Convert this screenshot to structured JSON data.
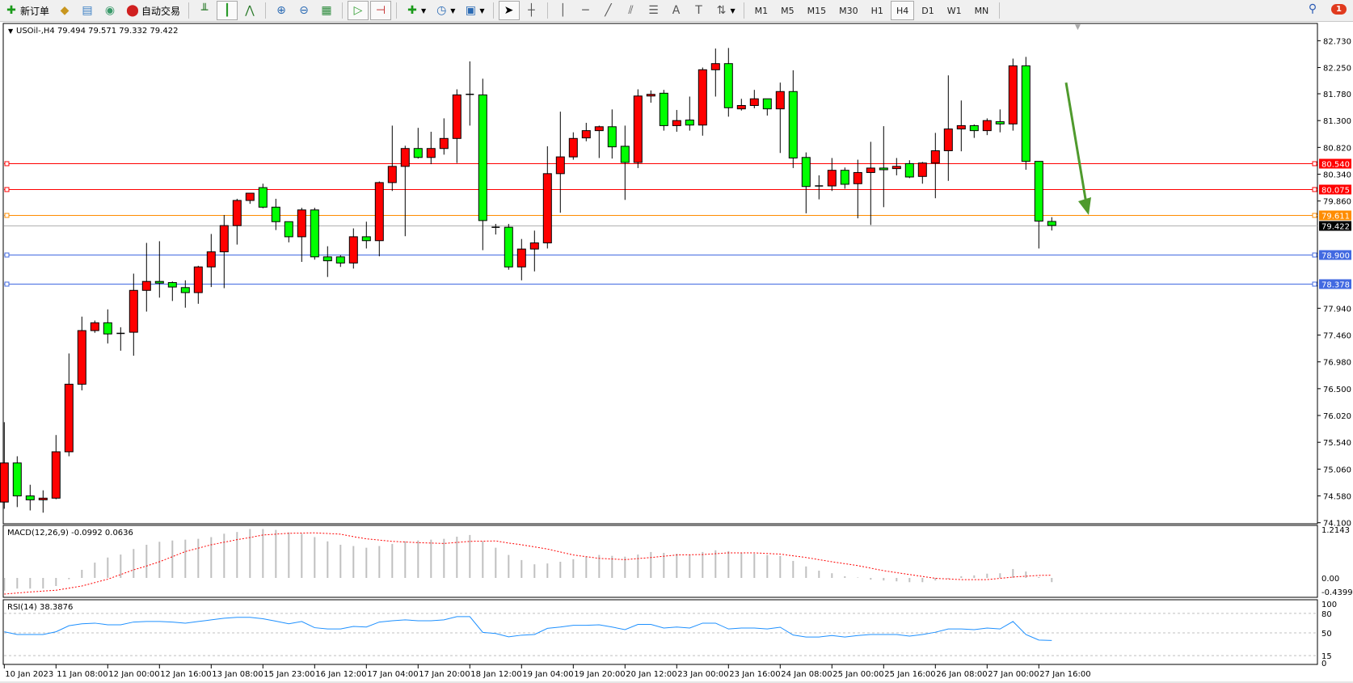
{
  "toolbar": {
    "new_order_label": "新订单",
    "auto_trade_label": "自动交易",
    "timeframes": [
      "M1",
      "M5",
      "M15",
      "M30",
      "H1",
      "H4",
      "D1",
      "W1",
      "MN"
    ],
    "active_timeframe": "H4",
    "notification_count": "1"
  },
  "chart": {
    "header": "USOil-,H4  79.494 79.571 79.332 79.422",
    "symbol": "USOil-",
    "period": "H4",
    "ohlc_current": {
      "open": 79.494,
      "high": 79.571,
      "low": 79.332,
      "close": 79.422
    },
    "price_ticks": [
      "82.730",
      "82.250",
      "81.780",
      "81.300",
      "80.820",
      "80.340",
      "79.860",
      "77.940",
      "77.460",
      "76.980",
      "76.500",
      "76.020",
      "75.540",
      "75.060",
      "74.580",
      "74.100"
    ],
    "levels": [
      {
        "price": "80.540",
        "color": "#ff0000"
      },
      {
        "price": "80.075",
        "color": "#ff0000"
      },
      {
        "price": "79.611",
        "color": "#ff8c00"
      },
      {
        "price": "78.900",
        "color": "#4169e1"
      },
      {
        "price": "78.378",
        "color": "#4169e1"
      }
    ],
    "current_price": {
      "price": "79.422",
      "color": "#000000"
    },
    "time_labels": [
      "10 Jan 2023",
      "11 Jan 08:00",
      "12 Jan 00:00",
      "12 Jan 16:00",
      "13 Jan 08:00",
      "15 Jan 23:00",
      "16 Jan 12:00",
      "17 Jan 04:00",
      "17 Jan 20:00",
      "18 Jan 12:00",
      "19 Jan 04:00",
      "19 Jan 20:00",
      "20 Jan 12:00",
      "23 Jan 00:00",
      "23 Jan 16:00",
      "24 Jan 08:00",
      "25 Jan 00:00",
      "25 Jan 16:00",
      "26 Jan 08:00",
      "27 Jan 00:00",
      "27 Jan 16:00"
    ],
    "bull_color": "#ff0000",
    "bear_color": "#00ff00",
    "annotation_arrow_color": "#4f9a2d"
  },
  "macd": {
    "label": "MACD(12,26,9) -0.0992 0.0636",
    "ticks": [
      "1.2143",
      "0.00",
      "-0.4399"
    ]
  },
  "rsi": {
    "label": "RSI(14) 38.3876",
    "ticks": [
      "100",
      "80",
      "50",
      "15",
      "0"
    ]
  },
  "chart_data": {
    "type": "candlestick",
    "ylim": [
      74.1,
      82.73
    ],
    "ohlc": [
      [
        74.47,
        75.9,
        74.35,
        75.17
      ],
      [
        75.17,
        75.29,
        74.38,
        74.58
      ],
      [
        74.58,
        74.78,
        74.32,
        74.51
      ],
      [
        74.51,
        74.68,
        74.28,
        74.54
      ],
      [
        74.54,
        75.67,
        74.52,
        75.37
      ],
      [
        75.37,
        77.13,
        75.29,
        76.58
      ],
      [
        76.58,
        77.79,
        76.47,
        77.54
      ],
      [
        77.54,
        77.72,
        77.5,
        77.68
      ],
      [
        77.68,
        77.92,
        77.31,
        77.48
      ],
      [
        77.48,
        77.6,
        77.18,
        77.49
      ],
      [
        77.51,
        78.56,
        77.09,
        78.26
      ],
      [
        78.26,
        79.11,
        77.88,
        78.42
      ],
      [
        78.42,
        79.14,
        78.13,
        78.39
      ],
      [
        78.4,
        78.42,
        78.07,
        78.32
      ],
      [
        78.31,
        78.44,
        77.95,
        78.22
      ],
      [
        78.22,
        78.7,
        78.02,
        78.68
      ],
      [
        78.68,
        79.27,
        78.32,
        78.95
      ],
      [
        78.95,
        79.61,
        78.3,
        79.42
      ],
      [
        79.42,
        79.9,
        79.08,
        79.87
      ],
      [
        79.87,
        80.0,
        79.81,
        80.0
      ],
      [
        80.1,
        80.17,
        79.73,
        79.75
      ],
      [
        79.75,
        79.9,
        79.34,
        79.49
      ],
      [
        79.49,
        79.49,
        79.12,
        79.22
      ],
      [
        79.22,
        79.74,
        78.77,
        79.7
      ],
      [
        79.7,
        79.74,
        78.81,
        78.86
      ],
      [
        78.86,
        79.05,
        78.5,
        78.79
      ],
      [
        78.86,
        78.89,
        78.68,
        78.75
      ],
      [
        78.75,
        79.37,
        78.65,
        79.22
      ],
      [
        79.22,
        79.49,
        79.01,
        79.15
      ],
      [
        79.15,
        80.21,
        78.87,
        80.19
      ],
      [
        80.19,
        81.21,
        80.04,
        80.48
      ],
      [
        80.48,
        80.85,
        79.23,
        80.8
      ],
      [
        80.8,
        81.17,
        80.62,
        80.64
      ],
      [
        80.64,
        81.1,
        80.52,
        80.8
      ],
      [
        80.8,
        81.34,
        80.69,
        80.98
      ],
      [
        80.98,
        81.86,
        80.54,
        81.76
      ],
      [
        81.76,
        82.36,
        81.21,
        81.77
      ],
      [
        81.76,
        82.05,
        78.98,
        79.51
      ],
      [
        79.39,
        79.45,
        79.26,
        79.39
      ],
      [
        79.39,
        79.45,
        78.63,
        78.68
      ],
      [
        78.68,
        79.18,
        78.44,
        79.0
      ],
      [
        79.0,
        79.33,
        78.6,
        79.11
      ],
      [
        79.11,
        80.84,
        79.01,
        80.35
      ],
      [
        80.35,
        81.46,
        79.65,
        80.65
      ],
      [
        80.65,
        81.09,
        80.6,
        80.98
      ],
      [
        80.99,
        81.26,
        80.93,
        81.12
      ],
      [
        81.12,
        81.21,
        80.63,
        81.19
      ],
      [
        81.19,
        81.5,
        80.62,
        80.83
      ],
      [
        80.84,
        81.21,
        79.88,
        80.55
      ],
      [
        80.55,
        81.86,
        80.45,
        81.74
      ],
      [
        81.74,
        81.84,
        81.62,
        81.77
      ],
      [
        81.79,
        81.85,
        81.12,
        81.21
      ],
      [
        81.21,
        81.49,
        81.1,
        81.3
      ],
      [
        81.31,
        81.73,
        81.12,
        81.22
      ],
      [
        81.22,
        82.25,
        81.03,
        82.21
      ],
      [
        82.21,
        82.59,
        81.73,
        82.32
      ],
      [
        82.32,
        82.6,
        81.37,
        81.53
      ],
      [
        81.51,
        81.69,
        81.48,
        81.57
      ],
      [
        81.57,
        81.85,
        81.52,
        81.69
      ],
      [
        81.69,
        81.69,
        81.39,
        81.51
      ],
      [
        81.51,
        81.98,
        80.72,
        81.82
      ],
      [
        81.82,
        82.2,
        80.45,
        80.63
      ],
      [
        80.64,
        80.73,
        79.64,
        80.12
      ],
      [
        80.13,
        80.32,
        79.89,
        80.13
      ],
      [
        80.13,
        80.63,
        80.04,
        80.41
      ],
      [
        80.41,
        80.46,
        80.08,
        80.16
      ],
      [
        80.17,
        80.6,
        79.55,
        80.37
      ],
      [
        80.37,
        80.92,
        79.43,
        80.45
      ],
      [
        80.45,
        81.2,
        79.75,
        80.42
      ],
      [
        80.44,
        80.63,
        80.32,
        80.48
      ],
      [
        80.53,
        80.59,
        80.27,
        80.29
      ],
      [
        80.3,
        80.56,
        80.17,
        80.54
      ],
      [
        80.54,
        81.08,
        79.91,
        80.76
      ],
      [
        80.76,
        82.11,
        80.22,
        81.15
      ],
      [
        81.15,
        81.66,
        80.75,
        81.21
      ],
      [
        81.21,
        81.23,
        80.99,
        81.12
      ],
      [
        81.12,
        81.34,
        81.04,
        81.3
      ],
      [
        81.28,
        81.5,
        81.09,
        81.24
      ],
      [
        81.24,
        82.41,
        81.12,
        82.28
      ],
      [
        82.28,
        82.44,
        80.42,
        80.57
      ],
      [
        80.57,
        80.57,
        79.01,
        79.5
      ],
      [
        79.494,
        79.571,
        79.332,
        79.422
      ]
    ],
    "macd_histogram": [
      -0.3,
      -0.25,
      -0.25,
      -0.25,
      -0.19,
      -0.03,
      0.19,
      0.36,
      0.48,
      0.55,
      0.68,
      0.78,
      0.85,
      0.88,
      0.9,
      0.92,
      0.96,
      1.04,
      1.08,
      1.15,
      1.15,
      1.13,
      1.07,
      1.04,
      0.96,
      0.86,
      0.78,
      0.75,
      0.71,
      0.75,
      0.8,
      0.86,
      0.88,
      0.9,
      0.92,
      0.97,
      1.01,
      0.86,
      0.71,
      0.54,
      0.42,
      0.32,
      0.34,
      0.38,
      0.44,
      0.5,
      0.54,
      0.52,
      0.5,
      0.55,
      0.61,
      0.59,
      0.57,
      0.55,
      0.61,
      0.65,
      0.63,
      0.59,
      0.57,
      0.54,
      0.52,
      0.4,
      0.27,
      0.17,
      0.11,
      0.04,
      0.01,
      -0.04,
      -0.06,
      -0.08,
      -0.1,
      -0.1,
      -0.06,
      -0.02,
      0.04,
      0.06,
      0.1,
      0.11,
      0.21,
      0.15,
      0.02,
      -0.0992
    ],
    "macd_signal": [
      -0.38,
      -0.355,
      -0.33,
      -0.31,
      -0.29,
      -0.24,
      -0.19,
      -0.11,
      -0.03,
      0.08,
      0.19,
      0.28,
      0.38,
      0.5,
      0.62,
      0.7,
      0.78,
      0.84,
      0.9,
      0.95,
      1.01,
      1.03,
      1.05,
      1.055,
      1.06,
      1.045,
      1.03,
      0.97,
      0.92,
      0.89,
      0.86,
      0.845,
      0.83,
      0.82,
      0.81,
      0.835,
      0.86,
      0.865,
      0.87,
      0.82,
      0.78,
      0.73,
      0.68,
      0.61,
      0.54,
      0.5,
      0.46,
      0.445,
      0.43,
      0.455,
      0.48,
      0.51,
      0.54,
      0.545,
      0.55,
      0.57,
      0.59,
      0.59,
      0.59,
      0.575,
      0.56,
      0.52,
      0.48,
      0.43,
      0.38,
      0.335,
      0.29,
      0.23,
      0.17,
      0.125,
      0.08,
      0.035,
      -0.01,
      -0.025,
      -0.04,
      -0.04,
      -0.04,
      -0.01,
      0.02,
      0.04,
      0.06,
      0.0636
    ],
    "macd_ylim": [
      -0.4399,
      1.2143
    ],
    "rsi": [
      51.7,
      47.5,
      47.5,
      47.5,
      51.7,
      61,
      64,
      65,
      62.5,
      62.5,
      66.7,
      67.5,
      67.5,
      66.7,
      65,
      67.5,
      70,
      72.5,
      74,
      74,
      71.7,
      68,
      64,
      67.5,
      58,
      56,
      56,
      60,
      59,
      66.7,
      68.7,
      70,
      68.7,
      68.7,
      70,
      75,
      75,
      50.8,
      49,
      44,
      46.5,
      47.5,
      57,
      59,
      61.7,
      61.7,
      62.5,
      59,
      55,
      63,
      63,
      57.5,
      59,
      57.5,
      65,
      65,
      56,
      57.5,
      57.5,
      56,
      58.7,
      46.7,
      43.7,
      43.7,
      46,
      43.7,
      46,
      47.5,
      47.5,
      47.5,
      45,
      47.5,
      51,
      56,
      56,
      55,
      57.5,
      56,
      67.5,
      47.5,
      39,
      38.3876
    ],
    "rsi_levels": [
      80,
      50,
      15
    ],
    "rsi_ylim": [
      0,
      100
    ],
    "time_label_every_n_bars": 4
  }
}
